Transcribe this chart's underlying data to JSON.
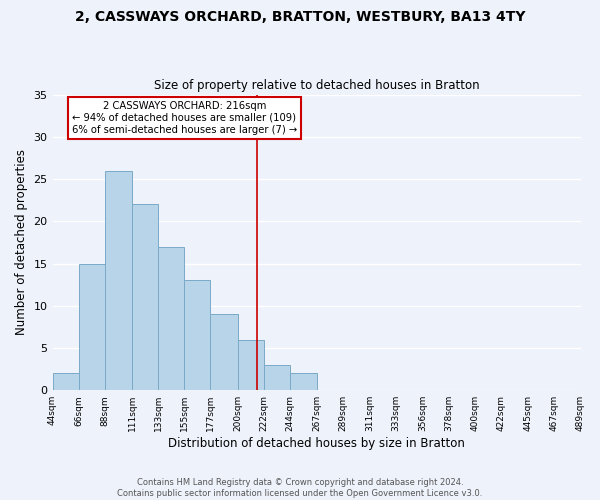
{
  "title": "2, CASSWAYS ORCHARD, BRATTON, WESTBURY, BA13 4TY",
  "subtitle": "Size of property relative to detached houses in Bratton",
  "xlabel": "Distribution of detached houses by size in Bratton",
  "ylabel": "Number of detached properties",
  "bar_color": "#b8d4e8",
  "bar_edge_color": "#7aaac8",
  "bin_edges": [
    44,
    66,
    88,
    111,
    133,
    155,
    177,
    200,
    222,
    244,
    267,
    289,
    311,
    333,
    356,
    378,
    400,
    422,
    445,
    467,
    489
  ],
  "bin_labels": [
    "44sqm",
    "66sqm",
    "88sqm",
    "111sqm",
    "133sqm",
    "155sqm",
    "177sqm",
    "200sqm",
    "222sqm",
    "244sqm",
    "267sqm",
    "289sqm",
    "311sqm",
    "333sqm",
    "356sqm",
    "378sqm",
    "400sqm",
    "422sqm",
    "445sqm",
    "467sqm",
    "489sqm"
  ],
  "counts": [
    2,
    15,
    26,
    22,
    17,
    13,
    9,
    6,
    3,
    2,
    0,
    0,
    0,
    0,
    0,
    0,
    0,
    0,
    0,
    0
  ],
  "ylim": [
    0,
    35
  ],
  "yticks": [
    0,
    5,
    10,
    15,
    20,
    25,
    30,
    35
  ],
  "property_line_x": 216,
  "annotation_title": "2 CASSWAYS ORCHARD: 216sqm",
  "annotation_line1": "← 94% of detached houses are smaller (109)",
  "annotation_line2": "6% of semi-detached houses are larger (7) →",
  "annotation_box_color": "#ffffff",
  "annotation_border_color": "#cc0000",
  "line_color": "#cc0000",
  "footer_line1": "Contains HM Land Registry data © Crown copyright and database right 2024.",
  "footer_line2": "Contains public sector information licensed under the Open Government Licence v3.0.",
  "background_color": "#eef2fa"
}
